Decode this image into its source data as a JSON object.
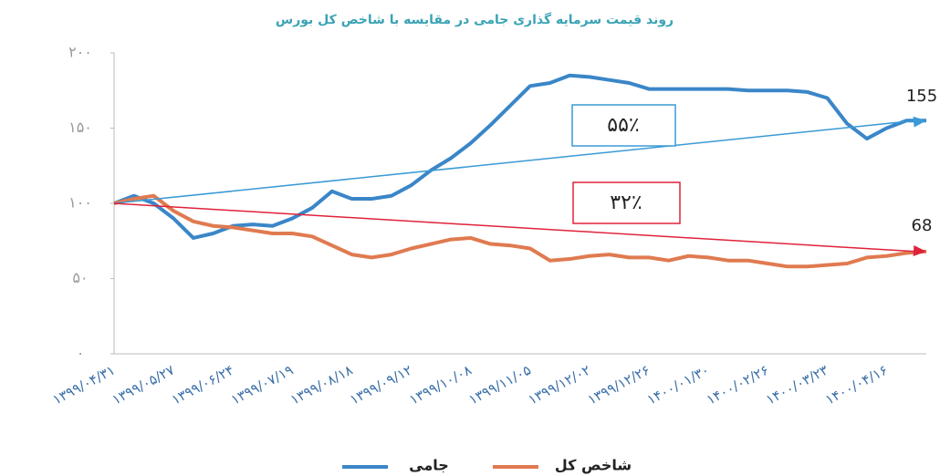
{
  "chart_data": {
    "type": "line",
    "title": "روند قیمت سرمایه گذاری جامی در مقایسه با شاخص کل بورس",
    "categories": [
      "۱۳۹۹/۰۴/۳۱",
      null,
      null,
      "۱۳۹۹/۰۵/۲۷",
      null,
      null,
      "۱۳۹۹/۰۶/۲۴",
      null,
      null,
      "۱۳۹۹/۰۷/۱۹",
      null,
      null,
      "۱۳۹۹/۰۸/۱۸",
      null,
      null,
      "۱۳۹۹/۰۹/۱۲",
      null,
      null,
      "۱۳۹۹/۱۰/۰۸",
      null,
      null,
      "۱۳۹۹/۱۱/۰۵",
      null,
      null,
      "۱۳۹۹/۱۲/۰۲",
      null,
      null,
      "۱۳۹۹/۱۲/۲۶",
      null,
      null,
      "۱۴۰۰/۰۱/۳۰",
      null,
      null,
      "۱۴۰۰/۰۲/۲۶",
      null,
      null,
      "۱۴۰۰/۰۳/۲۳",
      null,
      null,
      "۱۴۰۰/۰۴/۱۶",
      null,
      null
    ],
    "series": [
      {
        "name": "جامی",
        "color": "#3a86c8",
        "values": [
          100,
          105,
          100,
          90,
          77,
          80,
          85,
          86,
          85,
          90,
          97,
          108,
          103,
          103,
          105,
          112,
          122,
          130,
          140,
          152,
          165,
          178,
          180,
          185,
          184,
          182,
          180,
          176,
          176,
          176,
          176,
          176,
          175,
          175,
          175,
          174,
          170,
          153,
          143,
          150,
          155,
          155
        ]
      },
      {
        "name": "شاخص کل",
        "color": "#e07a50",
        "values": [
          100,
          103,
          105,
          95,
          88,
          85,
          84,
          82,
          80,
          80,
          78,
          72,
          66,
          64,
          66,
          70,
          73,
          76,
          77,
          73,
          72,
          70,
          62,
          63,
          65,
          66,
          64,
          64,
          62,
          65,
          64,
          62,
          62,
          60,
          58,
          58,
          59,
          60,
          64,
          65,
          67,
          68
        ]
      }
    ],
    "ylim": [
      0,
      200
    ],
    "yticks": [
      {
        "value": 0,
        "label": "۰"
      },
      {
        "value": 50,
        "label": "۵۰"
      },
      {
        "value": 100,
        "label": "۱۰۰"
      },
      {
        "value": 150,
        "label": "۱۵۰"
      },
      {
        "value": 200,
        "label": "۲۰۰"
      }
    ],
    "annotations": [
      {
        "text": "۵۵٪",
        "color": "#3a9ad6"
      },
      {
        "text": "۳۲٪",
        "color": "#e0223a"
      },
      {
        "text": "155"
      },
      {
        "text": "68"
      }
    ]
  }
}
